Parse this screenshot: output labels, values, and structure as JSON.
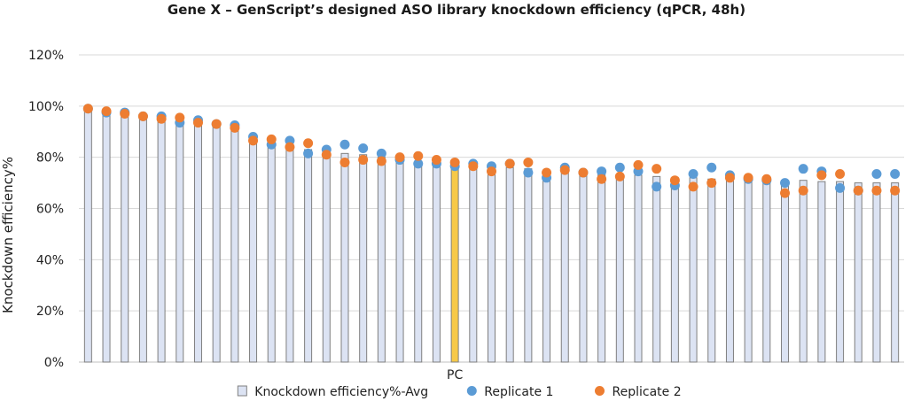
{
  "chart_data": {
    "type": "bar",
    "title": "Gene X – GenScript’s designed ASO library knockdown efficiency (qPCR, 48h)",
    "xlabel": "",
    "ylabel": "Knockdown efficiency%",
    "ylim": [
      0,
      120
    ],
    "yticks": [
      "0%",
      "20%",
      "40%",
      "60%",
      "80%",
      "100%",
      "120%"
    ],
    "grid": true,
    "legend_position": "bottom",
    "categories": [
      "",
      "",
      "",
      "",
      "",
      "",
      "",
      "",
      "",
      "",
      "",
      "",
      "",
      "",
      "",
      "",
      "",
      "",
      "",
      "",
      "PC",
      "",
      "",
      "",
      "",
      "",
      "",
      "",
      "",
      "",
      "",
      "",
      "",
      "",
      "",
      "",
      "",
      "",
      "",
      "",
      "",
      "",
      "",
      "",
      ""
    ],
    "highlight_category": "PC",
    "series": [
      {
        "name": "Knockdown efficiency%-Avg",
        "kind": "bar",
        "color": "#dce3f3",
        "edge_color": "#7f7f7f",
        "highlight_color": "#f7c948",
        "values": [
          98.5,
          97.5,
          97,
          95.5,
          95,
          94.5,
          94,
          93,
          92,
          87.5,
          86,
          85,
          83,
          82,
          81.5,
          81,
          80,
          79,
          78.5,
          77.5,
          77,
          77.5,
          76.5,
          76,
          75.5,
          75,
          74.5,
          74,
          73.5,
          73,
          73,
          72.5,
          72,
          72,
          71.5,
          71.5,
          71,
          71,
          71,
          71,
          70.5,
          70.5,
          70,
          70,
          70
        ]
      },
      {
        "name": "Replicate 1",
        "kind": "point",
        "color": "#5b9bd5",
        "values": [
          99,
          97.5,
          97.5,
          96,
          96,
          93.5,
          94.5,
          93,
          92.5,
          88,
          85,
          86.5,
          81.5,
          83,
          85,
          83.5,
          81.5,
          79,
          77.5,
          77.5,
          76.5,
          77.5,
          76.5,
          77.5,
          74,
          72,
          76,
          74,
          74.5,
          76,
          74.5,
          68.5,
          69,
          73.5,
          76,
          73,
          71.5,
          71,
          70,
          75.5,
          74.5,
          68,
          67,
          73.5,
          73.5
        ]
      },
      {
        "name": "Replicate 2",
        "kind": "point",
        "color": "#ed7d31",
        "values": [
          99,
          98,
          97,
          96,
          95,
          95.5,
          93.5,
          93,
          91.5,
          86.5,
          87,
          84,
          85.5,
          81,
          78,
          79,
          78.5,
          80,
          80.5,
          79,
          78,
          76.5,
          74.5,
          77.5,
          78,
          74,
          75,
          74,
          71.5,
          72.5,
          77,
          75.5,
          71,
          68.5,
          70,
          72,
          72,
          71.5,
          66,
          67,
          73,
          73.5,
          67,
          67,
          67
        ]
      }
    ]
  }
}
